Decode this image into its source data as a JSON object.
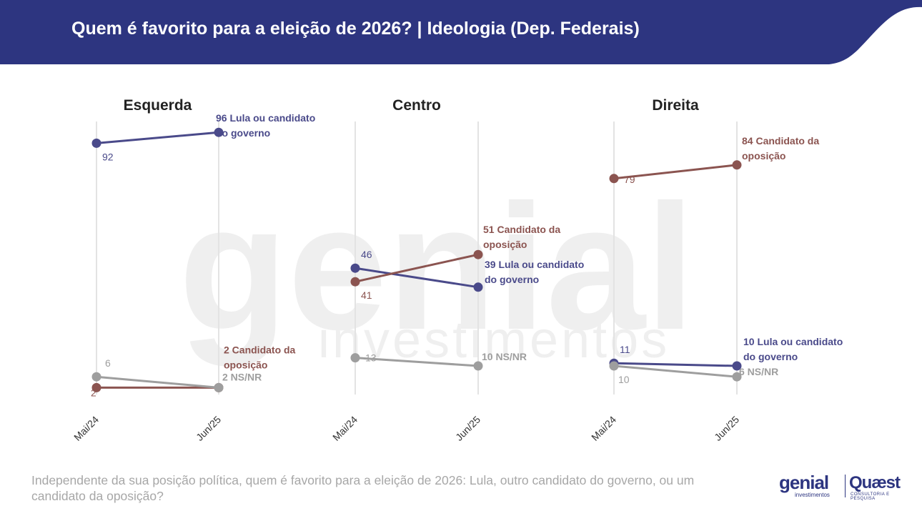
{
  "header": {
    "title": "Quem é favorito para a eleição de 2026? | Ideologia (Dep. Federais)",
    "bg_color": "#2d3580"
  },
  "watermark": {
    "brand": "genial",
    "sub": "investimentos"
  },
  "question": "Independente da sua posição política, quem é favorito para a eleição de 2026: Lula, outro candidato do governo, ou um candidato da oposição?",
  "logos": {
    "genial": "genial",
    "genial_sub": "investimentos",
    "quaest": "Quæst",
    "quaest_sub": "CONSULTORIA E PESQUISA"
  },
  "chart_data": [
    {
      "type": "line",
      "title": "Esquerda",
      "x": [
        "Mai/24",
        "Jun/25"
      ],
      "ylim": [
        0,
        100
      ],
      "series": [
        {
          "name": "Lula ou candidato do governo",
          "values": [
            92,
            96
          ],
          "color": "#4a4a8a",
          "end_label": [
            "96 Lula ou candidato",
            "do governo"
          ],
          "start_label": "92"
        },
        {
          "name": "Candidato da oposição",
          "values": [
            2,
            2
          ],
          "color": "#8b5450",
          "end_label": [
            "2 Candidato da",
            "oposição"
          ],
          "start_label": "2"
        },
        {
          "name": "NS/NR",
          "values": [
            6,
            2
          ],
          "color": "#9e9e9e",
          "end_label": [
            "2 NS/NR"
          ],
          "start_label": "6"
        }
      ]
    },
    {
      "type": "line",
      "title": "Centro",
      "x": [
        "Mai/24",
        "Jun/25"
      ],
      "ylim": [
        0,
        100
      ],
      "series": [
        {
          "name": "Lula ou candidato do governo",
          "values": [
            46,
            39
          ],
          "color": "#4a4a8a",
          "end_label": [
            "39 Lula ou candidato",
            "do governo"
          ],
          "start_label": "46"
        },
        {
          "name": "Candidato da oposição",
          "values": [
            41,
            51
          ],
          "color": "#8b5450",
          "end_label": [
            "51 Candidato da",
            "oposição"
          ],
          "start_label": "41"
        },
        {
          "name": "NS/NR",
          "values": [
            13,
            10
          ],
          "color": "#9e9e9e",
          "end_label": [
            "10 NS/NR"
          ],
          "start_label": "13"
        }
      ]
    },
    {
      "type": "line",
      "title": "Direita",
      "x": [
        "Mai/24",
        "Jun/25"
      ],
      "ylim": [
        0,
        100
      ],
      "series": [
        {
          "name": "Lula ou candidato do governo",
          "values": [
            11,
            10
          ],
          "color": "#4a4a8a",
          "end_label": [
            "10 Lula ou candidato",
            "do governo"
          ],
          "start_label": "11"
        },
        {
          "name": "Candidato da oposição",
          "values": [
            79,
            84
          ],
          "color": "#8b5450",
          "end_label": [
            "84 Candidato da",
            "oposição"
          ],
          "start_label": "79"
        },
        {
          "name": "NS/NR",
          "values": [
            10,
            6
          ],
          "color": "#9e9e9e",
          "end_label": [
            "6 NS/NR"
          ],
          "start_label": "10"
        }
      ]
    }
  ]
}
